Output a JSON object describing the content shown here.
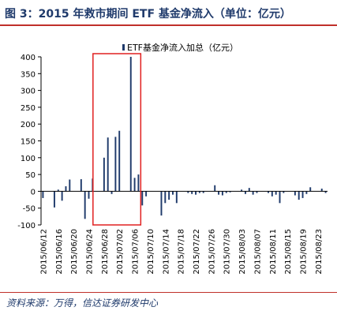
{
  "header": {
    "title": "图 3：2015 年救市期间 ETF 基金净流入（单位：亿元）"
  },
  "footer": {
    "source": "资料来源：万得，信达证券研发中心"
  },
  "chart_data": {
    "type": "bar",
    "legend": {
      "label": "ETF基金净流入加总（亿元）",
      "placement": "top-right"
    },
    "ylim": [
      -100,
      400
    ],
    "yticks": [
      -100,
      -50,
      0,
      50,
      100,
      150,
      200,
      250,
      300,
      350,
      400
    ],
    "xlabel": "",
    "ylabel": "",
    "grid": false,
    "bar_color": "#1f3a6b",
    "highlight_color": "#e02020",
    "highlight_range": [
      "2015/06/26",
      "2015/07/07"
    ],
    "tick_labels": [
      "2015/06/12",
      "2015/06/16",
      "2015/06/20",
      "2015/06/24",
      "2015/06/28",
      "2015/07/02",
      "2015/07/06",
      "2015/07/10",
      "2015/07/14",
      "2015/07/18",
      "2015/07/22",
      "2015/07/26",
      "2015/07/30",
      "2015/08/03",
      "2015/08/07",
      "2015/08/11",
      "2015/08/15",
      "2015/08/19",
      "2015/08/23"
    ],
    "categories": [
      "2015/06/12",
      "2015/06/13",
      "2015/06/14",
      "2015/06/15",
      "2015/06/16",
      "2015/06/17",
      "2015/06/18",
      "2015/06/19",
      "2015/06/20",
      "2015/06/21",
      "2015/06/22",
      "2015/06/23",
      "2015/06/24",
      "2015/06/25",
      "2015/06/26",
      "2015/06/27",
      "2015/06/28",
      "2015/06/29",
      "2015/06/30",
      "2015/07/01",
      "2015/07/02",
      "2015/07/03",
      "2015/07/04",
      "2015/07/05",
      "2015/07/06",
      "2015/07/07",
      "2015/07/08",
      "2015/07/09",
      "2015/07/10",
      "2015/07/11",
      "2015/07/12",
      "2015/07/13",
      "2015/07/14",
      "2015/07/15",
      "2015/07/16",
      "2015/07/17",
      "2015/07/18",
      "2015/07/19",
      "2015/07/20",
      "2015/07/21",
      "2015/07/22",
      "2015/07/23",
      "2015/07/24",
      "2015/07/25",
      "2015/07/26",
      "2015/07/27",
      "2015/07/28",
      "2015/07/29",
      "2015/07/30",
      "2015/07/31",
      "2015/08/01",
      "2015/08/02",
      "2015/08/03",
      "2015/08/04",
      "2015/08/05",
      "2015/08/06",
      "2015/08/07",
      "2015/08/08",
      "2015/08/09",
      "2015/08/10",
      "2015/08/11",
      "2015/08/12",
      "2015/08/13",
      "2015/08/14",
      "2015/08/15",
      "2015/08/16",
      "2015/08/17",
      "2015/08/18",
      "2015/08/19",
      "2015/08/20",
      "2015/08/21",
      "2015/08/22",
      "2015/08/23",
      "2015/08/24",
      "2015/08/25"
    ],
    "values": [
      -20,
      0,
      0,
      -48,
      5,
      -28,
      15,
      35,
      0,
      0,
      36,
      -82,
      -22,
      38,
      0,
      0,
      100,
      160,
      -8,
      162,
      180,
      0,
      0,
      400,
      40,
      50,
      -42,
      -15,
      0,
      0,
      0,
      -72,
      -35,
      -25,
      -10,
      -35,
      0,
      0,
      -5,
      -8,
      -10,
      -5,
      -5,
      0,
      0,
      18,
      -10,
      -12,
      -5,
      -3,
      0,
      0,
      5,
      -8,
      10,
      -10,
      -5,
      0,
      0,
      -5,
      -15,
      -10,
      -35,
      -5,
      0,
      0,
      -12,
      -25,
      -20,
      -8,
      12,
      0,
      0,
      8,
      -5
    ]
  }
}
